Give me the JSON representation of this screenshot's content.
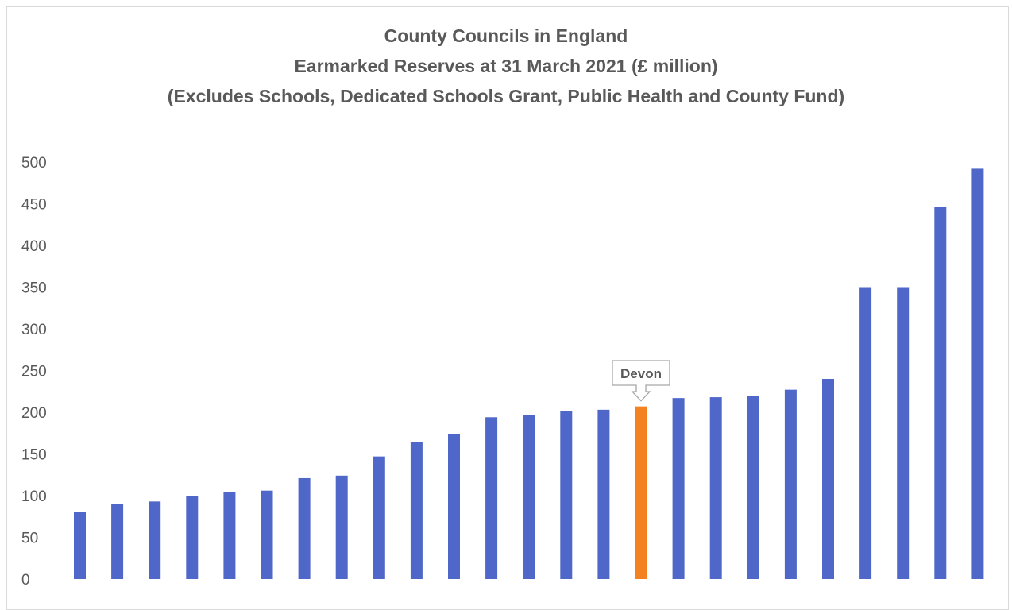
{
  "chart_data": {
    "type": "bar",
    "title": "County Councils in England",
    "subtitle": [
      "Earmarked Reserves at 31 March 2021 (£ million)",
      "(Excludes Schools, Dedicated Schools Grant, Public Health and County Fund)"
    ],
    "xlabel": "",
    "ylabel": "",
    "ylim": [
      0,
      500
    ],
    "yticks": [
      0,
      50,
      100,
      150,
      200,
      250,
      300,
      350,
      400,
      450,
      500
    ],
    "grid": false,
    "values": [
      80,
      90,
      93,
      100,
      104,
      106,
      121,
      124,
      147,
      164,
      174,
      194,
      197,
      201,
      203,
      207,
      217,
      218,
      220,
      227,
      240,
      350,
      350,
      446,
      492
    ],
    "highlight_index": 15,
    "annotation": "Devon",
    "colors": {
      "bar": "#4f67c8",
      "highlight": "#f58220",
      "text": "#595959"
    }
  }
}
